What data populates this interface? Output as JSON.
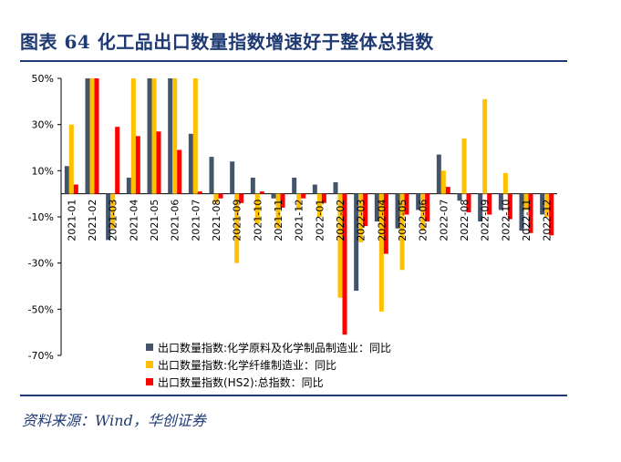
{
  "header": {
    "title": "图表 64   化工品出口数量指数增速好于整体总指数"
  },
  "footer": {
    "source": "资料来源：Wind，华创证券"
  },
  "chart_data": {
    "type": "bar",
    "categories": [
      "2021-01",
      "2021-02",
      "2021-03",
      "2021-04",
      "2021-05",
      "2021-06",
      "2021-07",
      "2021-08",
      "2021-09",
      "2021-10",
      "2021-11",
      "2021-12",
      "2022-01",
      "2022-02",
      "2022-03",
      "2022-04",
      "2022-05",
      "2022-06",
      "2022-07",
      "2022-08",
      "2022-09",
      "2022-10",
      "2022-11",
      "2022-12"
    ],
    "series": [
      {
        "name": "出口数量指数:化学原料及化学制品制造业：同比",
        "color": "#44546a",
        "values": [
          12,
          50,
          -20,
          7,
          50,
          50,
          26,
          16,
          14,
          7,
          -2,
          7,
          4,
          5,
          -42,
          -12,
          -15,
          -7,
          17,
          -3,
          -12,
          -7,
          -16,
          -9
        ]
      },
      {
        "name": "出口数量指数:化学纤维制造业：同比",
        "color": "#ffc000",
        "values": [
          30,
          50,
          -15,
          50,
          50,
          50,
          50,
          -4,
          -30,
          -13,
          -15,
          -7,
          -10,
          -45,
          -21,
          -51,
          -33,
          -16,
          10,
          24,
          41,
          9,
          -7,
          -10
        ]
      },
      {
        "name": "出口数量指数(HS2):总指数：同比",
        "color": "#ff0000",
        "values": [
          4,
          50,
          29,
          25,
          27,
          19,
          1,
          -2,
          -4,
          1,
          -6,
          -2,
          -4,
          -61,
          -14,
          -26,
          -9,
          -12,
          3,
          -8,
          -9,
          -11,
          -17,
          -18
        ]
      }
    ],
    "ylim": [
      -70,
      50
    ],
    "yticks": [
      -70,
      -50,
      -30,
      -10,
      10,
      30,
      50
    ],
    "ytick_labels": [
      "-70%",
      "-50%",
      "-30%",
      "-10%",
      "10%",
      "30%",
      "50%"
    ],
    "grid": false,
    "legend_position": "bottom-center"
  }
}
